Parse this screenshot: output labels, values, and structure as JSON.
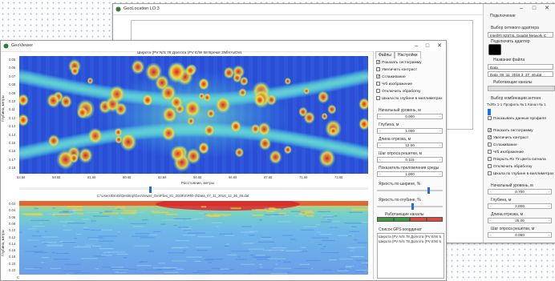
{
  "back_window": {
    "title": "GeoLocation LO.3",
    "panel": {
      "header": "Подключение",
      "adapter_label": "Выбор сетевого адаптера",
      "adapter_value": "Intel(R) 82574L Gigabit Network C",
      "connect_label": "Подключить адаптер",
      "name_label": "Название файла",
      "file_value1": "Data",
      "file_value2": "Data_05_11_2018 3_37_46.dat",
      "work_label": "Работающие каналы",
      "combo_label": "Выбор комбинации антенн",
      "combo_value": "Тх/Rх 1-1 Профиль № 1 Канал № 1",
      "show_profile": "Показывать данные профиля",
      "checks": [
        "Показать гистограмму",
        "Увеличить контраст",
        "Сглаживание",
        "Ч/б изображение",
        "Покрыть Rx Tx цвета сигнала",
        "Отключить обработку",
        "Шкала по глубине в миллиметрах"
      ],
      "checks_state": [
        true,
        true,
        false,
        false,
        false,
        false,
        false
      ],
      "start_level_label": "Начальный уровень, м",
      "start_level": "0.700",
      "depth_label": "Глубина, м",
      "depth": "2.000",
      "length_label": "Длина отрезка, м",
      "length": "25.00",
      "step_label": "Шаг опроса решётки, м",
      "step": "0.050"
    }
  },
  "front_window": {
    "title": "GeoViewer",
    "top_plot": {
      "title": "Широта (РV N/S 78 Долгота (РV E/W 68 Время 3NfirrAxDvs",
      "y_label": "Глубина, метры",
      "x_label": "Расстояние, метры",
      "y_ticks": [
        "0.05",
        "0.06",
        "0.07",
        "0.08",
        "0.09",
        "0.10",
        "0.11",
        "0.12",
        "0.13",
        "0.14",
        "0.15",
        "0.16",
        "0.17",
        "0.18"
      ],
      "x_ticks": [
        "53.66",
        "59.66",
        "61.66",
        "60.66",
        "62.66",
        "64.66",
        "66.66",
        "67.66",
        "71.66",
        "73.66"
      ],
      "colors": {
        "bg": "#2a4fd6",
        "mid": "#3fc6e6",
        "hot": "#f1e23a",
        "peak": "#d8202b"
      }
    },
    "file_path": "C:\\Users\\Dmitri\\Desktop\\GeoViewer_GeoFiles_81_2018\\SVRG-3\\Data_07_11_2018_12_36_46.dat",
    "bottom_plot": {
      "y_label": "Глубина, метры",
      "y_ticks": [
        "0.02",
        "0.04",
        "0.06",
        "0.08",
        "0.10",
        "0.12",
        "0.14",
        "0.16",
        "0.18",
        "0.20",
        "0.22"
      ],
      "x_ticks": [
        "C",
        "",
        "",
        "",
        "",
        "",
        "",
        "",
        "",
        "",
        "",
        "",
        ""
      ]
    },
    "side_tabs": [
      "Файлы",
      "Настройки"
    ],
    "side": {
      "checks": [
        "Показать гистограмму",
        "Увеличить контраст",
        "Сглаживание",
        "Ч/б изображение",
        "Отключить обработку",
        "Шкала по глубине в миллиметрах"
      ],
      "checks_state": [
        true,
        false,
        true,
        false,
        false,
        false
      ],
      "start_level_label": "Начальный уровень, м",
      "start_level": "0.000",
      "depth_label": "Глубина, м",
      "depth": "1.000",
      "length_label": "Длина отрезка, м",
      "length": "12.00",
      "step_label": "Шаг опроса решетки, м",
      "step": "0.115",
      "value_label": "Показатель преломления среды",
      "value": "1.000",
      "bright_width_label": "Яркость по ширине, %",
      "bright_depth_label": "Яркость по глубине, %",
      "work_label": "Работающие каналы",
      "gps_label": "Список GPS координат",
      "gps_items": [
        "Широта (РV N/S 78 Долгота (РV E/W 5",
        "Широта (РV N/S 78 Долгота (РV E/W 5"
      ]
    }
  }
}
